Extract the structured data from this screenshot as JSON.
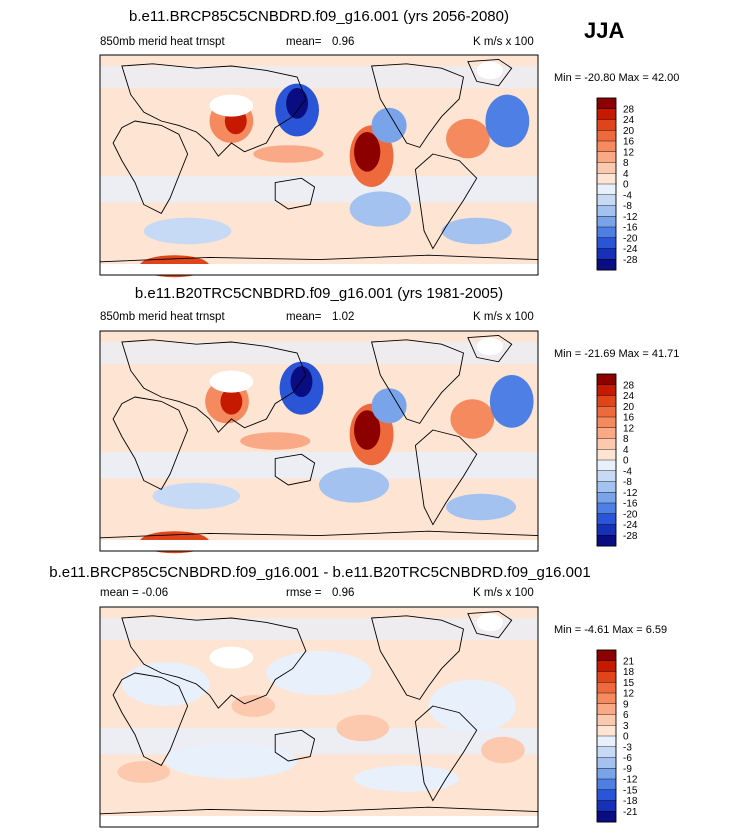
{
  "season": "JJA",
  "chart_data": [
    {
      "type": "heatmap",
      "title": "b.e11.BRCP85C5CNBDRD.f09_g16.001 (yrs 2056-2080)",
      "left_label": "850mb merid heat trnspt",
      "center_label": "mean=",
      "center_value": "0.96",
      "units": "K m/s x 100",
      "minmax": "Min = -20.80 Max =  42.00",
      "colorbar": {
        "labels": [
          "28",
          "24",
          "20",
          "16",
          "12",
          "8",
          "4",
          "0",
          "-4",
          "-8",
          "-12",
          "-16",
          "-20",
          "-24",
          "-28"
        ],
        "colors": [
          "#8c0000",
          "#c61a00",
          "#e0441a",
          "#ee6a3d",
          "#f58a5e",
          "#f9a985",
          "#fcc9ae",
          "#fde4d3",
          "#e8f0fc",
          "#c6daf6",
          "#a3c2f0",
          "#7aa4ea",
          "#4d7fe4",
          "#2a55d6",
          "#1630b8",
          "#0a0c82"
        ]
      },
      "features": [
        {
          "kind": "pos",
          "cx": 0.62,
          "cy": 0.46,
          "rx": 0.05,
          "ry": 0.14,
          "level": 4
        },
        {
          "kind": "pos",
          "cx": 0.61,
          "cy": 0.44,
          "rx": 0.03,
          "ry": 0.09,
          "level": 7
        },
        {
          "kind": "pos",
          "cx": 0.3,
          "cy": 0.3,
          "rx": 0.05,
          "ry": 0.1,
          "level": 3
        },
        {
          "kind": "pos",
          "cx": 0.31,
          "cy": 0.3,
          "rx": 0.025,
          "ry": 0.06,
          "level": 6
        },
        {
          "kind": "pos",
          "cx": 0.84,
          "cy": 0.38,
          "rx": 0.05,
          "ry": 0.09,
          "level": 3
        },
        {
          "kind": "pos",
          "cx": 0.17,
          "cy": 0.96,
          "rx": 0.08,
          "ry": 0.05,
          "level": 5
        },
        {
          "kind": "pos",
          "cx": 0.43,
          "cy": 0.45,
          "rx": 0.08,
          "ry": 0.04,
          "level": 2
        },
        {
          "kind": "neg",
          "cx": 0.45,
          "cy": 0.25,
          "rx": 0.05,
          "ry": 0.12,
          "level": 6
        },
        {
          "kind": "neg",
          "cx": 0.45,
          "cy": 0.22,
          "rx": 0.025,
          "ry": 0.07,
          "level": 9
        },
        {
          "kind": "neg",
          "cx": 0.93,
          "cy": 0.3,
          "rx": 0.05,
          "ry": 0.12,
          "level": 5
        },
        {
          "kind": "neg",
          "cx": 0.66,
          "cy": 0.32,
          "rx": 0.04,
          "ry": 0.08,
          "level": 4
        },
        {
          "kind": "neg",
          "cx": 0.64,
          "cy": 0.7,
          "rx": 0.07,
          "ry": 0.08,
          "level": 3
        },
        {
          "kind": "neg",
          "cx": 0.2,
          "cy": 0.8,
          "rx": 0.1,
          "ry": 0.06,
          "level": 2
        },
        {
          "kind": "neg",
          "cx": 0.86,
          "cy": 0.8,
          "rx": 0.08,
          "ry": 0.06,
          "level": 3
        }
      ]
    },
    {
      "type": "heatmap",
      "title": "b.e11.B20TRC5CNBDRD.f09_g16.001 (yrs 1981-2005)",
      "left_label": "850mb merid heat trnspt",
      "center_label": "mean=",
      "center_value": "1.02",
      "units": "K m/s x 100",
      "minmax": "Min = -21.69 Max =  41.71",
      "colorbar": {
        "labels": [
          "28",
          "24",
          "20",
          "16",
          "12",
          "8",
          "4",
          "0",
          "-4",
          "-8",
          "-12",
          "-16",
          "-20",
          "-24",
          "-28"
        ],
        "colors": [
          "#8c0000",
          "#c61a00",
          "#e0441a",
          "#ee6a3d",
          "#f58a5e",
          "#f9a985",
          "#fcc9ae",
          "#fde4d3",
          "#e8f0fc",
          "#c6daf6",
          "#a3c2f0",
          "#7aa4ea",
          "#4d7fe4",
          "#2a55d6",
          "#1630b8",
          "#0a0c82"
        ]
      },
      "features": [
        {
          "kind": "pos",
          "cx": 0.62,
          "cy": 0.47,
          "rx": 0.05,
          "ry": 0.14,
          "level": 4
        },
        {
          "kind": "pos",
          "cx": 0.61,
          "cy": 0.45,
          "rx": 0.03,
          "ry": 0.09,
          "level": 7
        },
        {
          "kind": "pos",
          "cx": 0.29,
          "cy": 0.32,
          "rx": 0.05,
          "ry": 0.1,
          "level": 3
        },
        {
          "kind": "pos",
          "cx": 0.3,
          "cy": 0.32,
          "rx": 0.025,
          "ry": 0.06,
          "level": 6
        },
        {
          "kind": "pos",
          "cx": 0.85,
          "cy": 0.4,
          "rx": 0.05,
          "ry": 0.09,
          "level": 3
        },
        {
          "kind": "pos",
          "cx": 0.17,
          "cy": 0.96,
          "rx": 0.08,
          "ry": 0.05,
          "level": 5
        },
        {
          "kind": "pos",
          "cx": 0.4,
          "cy": 0.5,
          "rx": 0.08,
          "ry": 0.04,
          "level": 2
        },
        {
          "kind": "neg",
          "cx": 0.46,
          "cy": 0.26,
          "rx": 0.05,
          "ry": 0.12,
          "level": 6
        },
        {
          "kind": "neg",
          "cx": 0.46,
          "cy": 0.23,
          "rx": 0.025,
          "ry": 0.07,
          "level": 9
        },
        {
          "kind": "neg",
          "cx": 0.94,
          "cy": 0.32,
          "rx": 0.05,
          "ry": 0.12,
          "level": 5
        },
        {
          "kind": "neg",
          "cx": 0.66,
          "cy": 0.34,
          "rx": 0.04,
          "ry": 0.08,
          "level": 4
        },
        {
          "kind": "neg",
          "cx": 0.58,
          "cy": 0.7,
          "rx": 0.08,
          "ry": 0.08,
          "level": 3
        },
        {
          "kind": "neg",
          "cx": 0.22,
          "cy": 0.75,
          "rx": 0.1,
          "ry": 0.06,
          "level": 2
        },
        {
          "kind": "neg",
          "cx": 0.87,
          "cy": 0.8,
          "rx": 0.08,
          "ry": 0.06,
          "level": 3
        }
      ]
    },
    {
      "type": "heatmap",
      "title": "b.e11.BRCP85C5CNBDRD.f09_g16.001 - b.e11.B20TRC5CNBDRD.f09_g16.001",
      "left_label": "mean =  -0.06",
      "center_label": "rmse =",
      "center_value": "0.96",
      "units": "K m/s x 100",
      "minmax": "Min = -4.61 Max =  6.59",
      "colorbar": {
        "labels": [
          "21",
          "18",
          "15",
          "12",
          "9",
          "6",
          "3",
          "0",
          "-3",
          "-6",
          "-9",
          "-12",
          "-15",
          "-18",
          "-21"
        ],
        "colors": [
          "#8c0000",
          "#c61a00",
          "#e0441a",
          "#ee6a3d",
          "#f58a5e",
          "#f9a985",
          "#fcc9ae",
          "#fde4d3",
          "#e8f0fc",
          "#c6daf6",
          "#a3c2f0",
          "#7aa4ea",
          "#4d7fe4",
          "#2a55d6",
          "#1630b8",
          "#0a0c82"
        ]
      },
      "features": [
        {
          "kind": "neg",
          "cx": 0.15,
          "cy": 0.35,
          "rx": 0.1,
          "ry": 0.1,
          "level": 1
        },
        {
          "kind": "neg",
          "cx": 0.5,
          "cy": 0.3,
          "rx": 0.12,
          "ry": 0.1,
          "level": 1
        },
        {
          "kind": "neg",
          "cx": 0.85,
          "cy": 0.45,
          "rx": 0.1,
          "ry": 0.12,
          "level": 1
        },
        {
          "kind": "neg",
          "cx": 0.3,
          "cy": 0.7,
          "rx": 0.15,
          "ry": 0.08,
          "level": 1
        },
        {
          "kind": "neg",
          "cx": 0.7,
          "cy": 0.78,
          "rx": 0.12,
          "ry": 0.06,
          "level": 1
        },
        {
          "kind": "pos",
          "cx": 0.35,
          "cy": 0.45,
          "rx": 0.05,
          "ry": 0.05,
          "level": 1
        },
        {
          "kind": "pos",
          "cx": 0.6,
          "cy": 0.55,
          "rx": 0.06,
          "ry": 0.06,
          "level": 1
        },
        {
          "kind": "pos",
          "cx": 0.1,
          "cy": 0.75,
          "rx": 0.06,
          "ry": 0.05,
          "level": 1
        },
        {
          "kind": "pos",
          "cx": 0.92,
          "cy": 0.65,
          "rx": 0.05,
          "ry": 0.06,
          "level": 1
        }
      ]
    }
  ]
}
